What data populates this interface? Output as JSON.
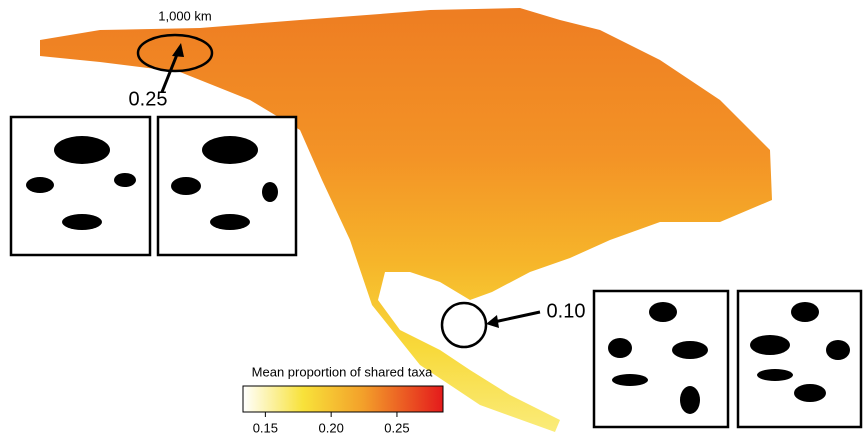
{
  "scale_label": "1,000 km",
  "callouts": [
    "0.25",
    "0.10"
  ],
  "colorbar": {
    "title": "Mean proportion of shared taxa",
    "lim": [
      0.133,
      0.285
    ],
    "ticks": [
      0.15,
      {
        "value": 0.2,
        "label": "0.20"
      },
      0.25
    ]
  }
}
